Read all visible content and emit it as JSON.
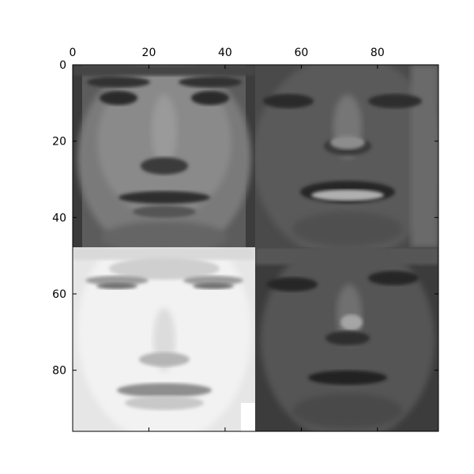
{
  "chart_data": {
    "type": "heatmap",
    "image_size": [
      96,
      96
    ],
    "xlim": [
      0,
      96
    ],
    "ylim": [
      96,
      0
    ],
    "x_ticks": [
      0,
      20,
      40,
      60,
      80
    ],
    "y_ticks": [
      0,
      20,
      40,
      60,
      80
    ],
    "x_tick_labels": [
      "0",
      "20",
      "40",
      "60",
      "80"
    ],
    "y_tick_labels": [
      "0",
      "20",
      "40",
      "60",
      "80"
    ],
    "x_axis_position": "top",
    "colormap": "gray",
    "tiles": [
      {
        "name": "face-top-left",
        "expression": "neutral",
        "col_range": [
          0,
          48
        ],
        "row_range": [
          0,
          48
        ],
        "tone": "medium gray"
      },
      {
        "name": "face-top-right",
        "expression": "smiling",
        "col_range": [
          48,
          96
        ],
        "row_range": [
          0,
          48
        ],
        "tone": "dark gray"
      },
      {
        "name": "face-bottom-left",
        "expression": "crying",
        "col_range": [
          0,
          48
        ],
        "row_range": [
          48,
          96
        ],
        "tone": "light gray"
      },
      {
        "name": "face-bottom-right",
        "expression": "sad",
        "col_range": [
          48,
          96
        ],
        "row_range": [
          48,
          96
        ],
        "tone": "dark gray"
      }
    ],
    "title": "",
    "xlabel": "",
    "ylabel": ""
  }
}
